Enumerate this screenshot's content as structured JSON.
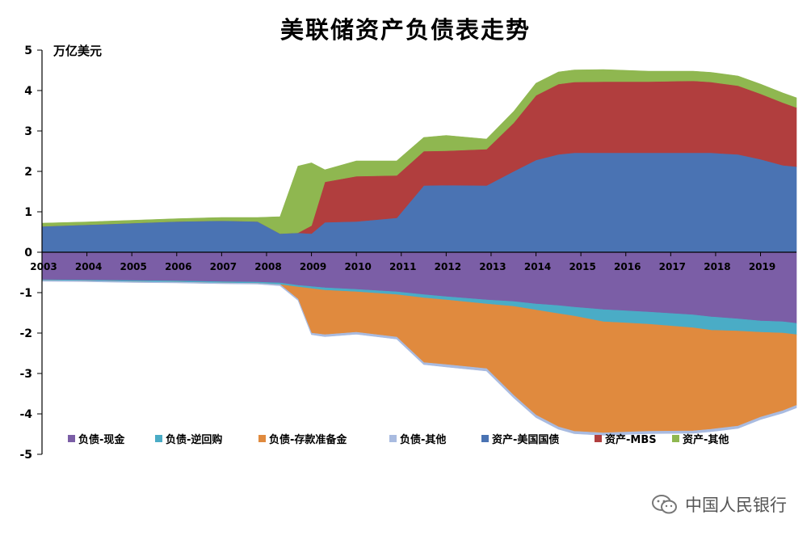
{
  "chart_data": {
    "type": "area",
    "title": "美联储资产负债表走势",
    "ylabel": "万亿美元",
    "ylim": [
      -5,
      5
    ],
    "yticks": [
      5,
      4,
      3,
      2,
      1,
      0,
      -1,
      -2,
      -3,
      -4,
      -5
    ],
    "xlim": [
      2003,
      2019.8
    ],
    "xticks": [
      "2003",
      "2004",
      "2005",
      "2006",
      "2007",
      "2008",
      "2009",
      "2010",
      "2011",
      "2012",
      "2013",
      "2014",
      "2015",
      "2016",
      "2017",
      "2018",
      "2019"
    ],
    "grid": false,
    "legend_position": "bottom",
    "x": [
      2003.0,
      2004.0,
      2005.0,
      2006.0,
      2007.0,
      2007.8,
      2008.3,
      2008.7,
      2009.0,
      2009.3,
      2010.0,
      2010.9,
      2011.5,
      2012.0,
      2012.9,
      2013.5,
      2014.0,
      2014.5,
      2014.85,
      2015.5,
      2016.5,
      2017.5,
      2017.9,
      2018.5,
      2019.0,
      2019.5,
      2019.8
    ],
    "series": [
      {
        "name": "资产-美国国债",
        "side": "asset",
        "color": "#4A73B3",
        "values": [
          0.64,
          0.68,
          0.72,
          0.76,
          0.78,
          0.76,
          0.46,
          0.48,
          0.46,
          0.74,
          0.76,
          0.85,
          1.65,
          1.66,
          1.65,
          2.0,
          2.28,
          2.42,
          2.46,
          2.46,
          2.46,
          2.46,
          2.46,
          2.42,
          2.3,
          2.15,
          2.12
        ]
      },
      {
        "name": "资产-MBS",
        "side": "asset",
        "color": "#B13E3E",
        "values": [
          0,
          0,
          0,
          0,
          0,
          0,
          0,
          0,
          0.2,
          1.0,
          1.12,
          1.05,
          0.85,
          0.85,
          0.9,
          1.2,
          1.6,
          1.74,
          1.75,
          1.76,
          1.76,
          1.78,
          1.75,
          1.7,
          1.62,
          1.55,
          1.46
        ]
      },
      {
        "name": "资产-其他",
        "side": "asset",
        "color": "#8FB750",
        "values": [
          0.08,
          0.07,
          0.07,
          0.07,
          0.08,
          0.1,
          0.42,
          1.65,
          1.55,
          0.3,
          0.38,
          0.36,
          0.34,
          0.38,
          0.25,
          0.28,
          0.3,
          0.3,
          0.3,
          0.3,
          0.26,
          0.24,
          0.24,
          0.24,
          0.24,
          0.24,
          0.24
        ]
      },
      {
        "name": "负债-现金",
        "side": "liability",
        "color": "#7B5EA6",
        "values": [
          -0.68,
          -0.69,
          -0.7,
          -0.71,
          -0.73,
          -0.74,
          -0.76,
          -0.82,
          -0.85,
          -0.88,
          -0.92,
          -0.98,
          -1.05,
          -1.1,
          -1.18,
          -1.22,
          -1.28,
          -1.32,
          -1.36,
          -1.42,
          -1.48,
          -1.55,
          -1.6,
          -1.65,
          -1.7,
          -1.72,
          -1.76
        ]
      },
      {
        "name": "负债-逆回购",
        "side": "liability",
        "color": "#4AACC6",
        "values": [
          -0.02,
          -0.02,
          -0.03,
          -0.03,
          -0.03,
          -0.03,
          -0.04,
          -0.04,
          -0.05,
          -0.06,
          -0.06,
          -0.07,
          -0.08,
          -0.08,
          -0.1,
          -0.12,
          -0.15,
          -0.2,
          -0.22,
          -0.3,
          -0.3,
          -0.32,
          -0.33,
          -0.3,
          -0.28,
          -0.28,
          -0.28
        ]
      },
      {
        "name": "负债-存款准备金",
        "side": "liability",
        "color": "#E08A3E",
        "values": [
          0,
          0,
          0,
          0,
          0,
          0,
          0,
          -0.3,
          -1.1,
          -1.1,
          -1.0,
          -1.05,
          -1.6,
          -1.6,
          -1.6,
          -2.2,
          -2.6,
          -2.8,
          -2.85,
          -2.75,
          -2.65,
          -2.55,
          -2.45,
          -2.35,
          -2.1,
          -1.92,
          -1.75
        ]
      },
      {
        "name": "负债-其他",
        "side": "liability",
        "color": "#A9BBE0",
        "values": [
          -0.02,
          -0.02,
          -0.02,
          -0.02,
          -0.02,
          -0.02,
          -0.03,
          -0.03,
          -0.04,
          -0.05,
          -0.05,
          -0.05,
          -0.05,
          -0.06,
          -0.06,
          -0.06,
          -0.06,
          -0.06,
          -0.06,
          -0.06,
          -0.06,
          -0.06,
          -0.06,
          -0.06,
          -0.06,
          -0.06,
          -0.06
        ]
      }
    ],
    "legend_order": [
      "负债-现金",
      "负债-逆回购",
      "负债-存款准备金",
      "负债-其他",
      "资产-美国国债",
      "资产-MBS",
      "资产-其他"
    ]
  },
  "watermark": {
    "text": "中国人民银行",
    "icon": "wechat-icon"
  }
}
